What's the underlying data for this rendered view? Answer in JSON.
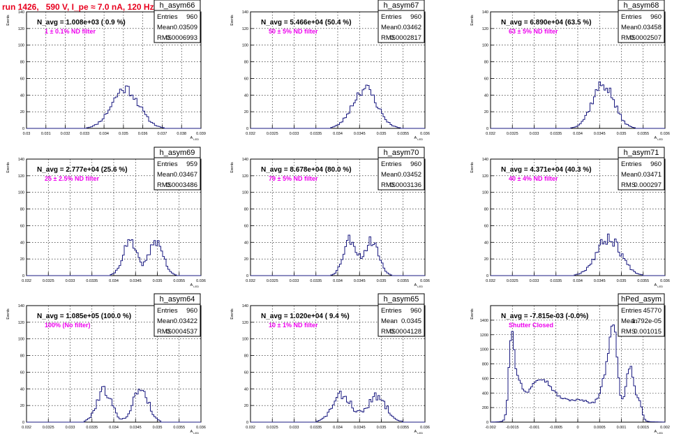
{
  "run_title": "run 1426,   590 V, I_pe ≈ 7.0 nA, 120 Hz",
  "chart_data": [
    {
      "type": "histogram",
      "name": "h_asym66",
      "navg": "N_avg = 1.008e+03 ( 0.9 %)",
      "filter": "1 ± 0.1% ND filter",
      "stats": {
        "entries": "960",
        "mean": "0.03509",
        "rms": "0.0006993"
      },
      "xlim": [
        0.03,
        0.039
      ],
      "ylim": [
        0,
        140
      ],
      "yticks": [
        0,
        20,
        40,
        60,
        80,
        100,
        120,
        140
      ],
      "xticks": [
        0.03,
        0.031,
        0.032,
        0.033,
        0.034,
        0.035,
        0.036,
        0.037,
        0.038,
        0.039
      ],
      "xtick_labels": [
        "0.03",
        "0.031",
        "0.032",
        "0.033",
        "0.034",
        "0.035",
        "0.036",
        "0.037",
        "0.038",
        "0.039"
      ],
      "xlabel": "A_LED",
      "ylabel": "Events",
      "bin": 0.0001,
      "peaks": [
        {
          "c": 0.0351,
          "s": 0.0007,
          "a": 48
        }
      ],
      "noise": 0.14,
      "seed": 11
    },
    {
      "type": "histogram",
      "name": "h_asym67",
      "navg": "N_avg = 5.466e+04 (50.4 %)",
      "filter": "50 ± 5% ND filter",
      "stats": {
        "entries": "960",
        "mean": "0.03462",
        "rms": "0.0002817"
      },
      "xlim": [
        0.032,
        0.036
      ],
      "ylim": [
        0,
        140
      ],
      "yticks": [
        0,
        20,
        40,
        60,
        80,
        100,
        120,
        140
      ],
      "xticks": [
        0.032,
        0.0325,
        0.033,
        0.0335,
        0.034,
        0.0345,
        0.035,
        0.0355,
        0.036
      ],
      "xtick_labels": [
        "0.032",
        "0.0325",
        "0.033",
        "0.0335",
        "0.034",
        "0.0345",
        "0.035",
        "0.0355",
        "0.036"
      ],
      "xlabel": "A_LED",
      "ylabel": "Events",
      "bin": 4e-05,
      "peaks": [
        {
          "c": 0.03462,
          "s": 0.00028,
          "a": 48
        }
      ],
      "noise": 0.15,
      "seed": 23
    },
    {
      "type": "histogram",
      "name": "h_asym68",
      "navg": "N_avg = 6.890e+04 (63.5 %)",
      "filter": "63 ± 5% ND filter",
      "stats": {
        "entries": "960",
        "mean": "0.03458",
        "rms": "0.0002507"
      },
      "xlim": [
        0.032,
        0.036
      ],
      "ylim": [
        0,
        140
      ],
      "yticks": [
        0,
        20,
        40,
        60,
        80,
        100,
        120,
        140
      ],
      "xticks": [
        0.032,
        0.0325,
        0.033,
        0.0335,
        0.034,
        0.0345,
        0.035,
        0.0355,
        0.036
      ],
      "xtick_labels": [
        "0.032",
        "0.0325",
        "0.033",
        "0.0335",
        "0.034",
        "0.0345",
        "0.035",
        "0.0355",
        "0.036"
      ],
      "xlabel": "A_LED",
      "ylabel": "Events",
      "bin": 4e-05,
      "peaks": [
        {
          "c": 0.03458,
          "s": 0.00025,
          "a": 53
        }
      ],
      "noise": 0.15,
      "seed": 37
    },
    {
      "type": "histogram",
      "name": "h_asym69",
      "navg": "N_avg = 2.777e+04 (25.6 %)",
      "filter": "25 ± 2.5% ND filter",
      "stats": {
        "entries": "959",
        "mean": "0.03467",
        "rms": "0.0003486"
      },
      "xlim": [
        0.032,
        0.036
      ],
      "ylim": [
        0,
        140
      ],
      "yticks": [
        0,
        20,
        40,
        60,
        80,
        100,
        120,
        140
      ],
      "xticks": [
        0.032,
        0.0325,
        0.033,
        0.0335,
        0.034,
        0.0345,
        0.035,
        0.0355,
        0.036
      ],
      "xtick_labels": [
        "0.032",
        "0.0325",
        "0.033",
        "0.0335",
        "0.034",
        "0.0345",
        "0.035",
        "0.0355",
        "0.036"
      ],
      "xlabel": "A_LED",
      "ylabel": "Events",
      "bin": 4e-05,
      "peaks": [
        {
          "c": 0.03437,
          "s": 0.00016,
          "a": 40
        },
        {
          "c": 0.03497,
          "s": 0.00016,
          "a": 42
        }
      ],
      "noise": 0.16,
      "seed": 41
    },
    {
      "type": "histogram",
      "name": "h_asym70",
      "navg": "N_avg = 8.678e+04 (80.0 %)",
      "filter": "79 ± 5% ND filter",
      "stats": {
        "entries": "960",
        "mean": "0.03452",
        "rms": "0.0003136"
      },
      "xlim": [
        0.032,
        0.036
      ],
      "ylim": [
        0,
        140
      ],
      "yticks": [
        0,
        20,
        40,
        60,
        80,
        100,
        120,
        140
      ],
      "xticks": [
        0.032,
        0.0325,
        0.033,
        0.0335,
        0.034,
        0.0345,
        0.035,
        0.0355,
        0.036
      ],
      "xtick_labels": [
        "0.032",
        "0.0325",
        "0.033",
        "0.0335",
        "0.034",
        "0.0345",
        "0.035",
        "0.0355",
        "0.036"
      ],
      "xlabel": "A_LED",
      "ylabel": "Events",
      "bin": 4e-05,
      "peaks": [
        {
          "c": 0.03428,
          "s": 0.00015,
          "a": 44
        },
        {
          "c": 0.03478,
          "s": 0.00016,
          "a": 42
        }
      ],
      "noise": 0.16,
      "seed": 53
    },
    {
      "type": "histogram",
      "name": "h_asym71",
      "navg": "N_avg = 4.371e+04 (40.3 %)",
      "filter": "40 ± 4% ND filter",
      "stats": {
        "entries": "960",
        "mean": "0.03471",
        "rms": "0.000297"
      },
      "xlim": [
        0.032,
        0.036
      ],
      "ylim": [
        0,
        140
      ],
      "yticks": [
        0,
        20,
        40,
        60,
        80,
        100,
        120,
        140
      ],
      "xticks": [
        0.032,
        0.0325,
        0.033,
        0.0335,
        0.034,
        0.0345,
        0.035,
        0.0355,
        0.036
      ],
      "xtick_labels": [
        "0.032",
        "0.0325",
        "0.033",
        "0.0335",
        "0.034",
        "0.0345",
        "0.035",
        "0.0355",
        "0.036"
      ],
      "xlabel": "A_LED",
      "ylabel": "Events",
      "bin": 4e-05,
      "peaks": [
        {
          "c": 0.03471,
          "s": 0.00028,
          "a": 45
        }
      ],
      "noise": 0.17,
      "seed": 67
    },
    {
      "type": "histogram",
      "name": "h_asym64",
      "navg": "N_avg = 1.085e+05 (100.0 %)",
      "filter": "100% (No filter)",
      "stats": {
        "entries": "960",
        "mean": "0.03422",
        "rms": "0.0004537"
      },
      "xlim": [
        0.032,
        0.036
      ],
      "ylim": [
        0,
        140
      ],
      "yticks": [
        0,
        20,
        40,
        60,
        80,
        100,
        120,
        140
      ],
      "xticks": [
        0.032,
        0.0325,
        0.033,
        0.0335,
        0.034,
        0.0345,
        0.035,
        0.0355,
        0.036
      ],
      "xtick_labels": [
        "0.032",
        "0.0325",
        "0.033",
        "0.0335",
        "0.034",
        "0.0345",
        "0.035",
        "0.0355",
        "0.036"
      ],
      "xlabel": "A_LED",
      "ylabel": "Events",
      "bin": 4e-05,
      "peaks": [
        {
          "c": 0.03378,
          "s": 0.00017,
          "a": 39
        },
        {
          "c": 0.03462,
          "s": 0.00017,
          "a": 41
        }
      ],
      "noise": 0.18,
      "seed": 79
    },
    {
      "type": "histogram",
      "name": "h_asym65",
      "navg": "N_avg = 1.020e+04 ( 9.4 %)",
      "filter": "10 ± 1% ND filter",
      "stats": {
        "entries": "960",
        "mean": "0.0345",
        "rms": "0.0004128"
      },
      "xlim": [
        0.032,
        0.036
      ],
      "ylim": [
        0,
        140
      ],
      "yticks": [
        0,
        20,
        40,
        60,
        80,
        100,
        120,
        140
      ],
      "xticks": [
        0.032,
        0.0325,
        0.033,
        0.0335,
        0.034,
        0.0345,
        0.035,
        0.0355,
        0.036
      ],
      "xtick_labels": [
        "0.032",
        "0.0325",
        "0.033",
        "0.0335",
        "0.034",
        "0.0345",
        "0.035",
        "0.0355",
        "0.036"
      ],
      "xlabel": "A_LED",
      "ylabel": "Events",
      "bin": 4e-05,
      "peaks": [
        {
          "c": 0.0341,
          "s": 0.00022,
          "a": 32
        },
        {
          "c": 0.0349,
          "s": 0.00022,
          "a": 30
        }
      ],
      "noise": 0.2,
      "seed": 83
    },
    {
      "type": "histogram",
      "name": "hPed_asym",
      "navg": "N_avg = -7.815e-03 (-0.0%)",
      "filter": "Shutter Closed",
      "stats": {
        "entries": "45770",
        "mean": "1.792e-05",
        "rms": "0.001015"
      },
      "xlim": [
        -0.002,
        0.002
      ],
      "ylim": [
        0,
        1600
      ],
      "yticks": [
        0,
        200,
        400,
        600,
        800,
        1000,
        1200,
        1400
      ],
      "xticks": [
        -0.002,
        -0.0015,
        -0.001,
        -0.0005,
        0,
        0.0005,
        0.001,
        0.0015,
        0.002
      ],
      "xtick_labels": [
        "-0.002",
        "-0.0015",
        "-0.001",
        "-0.0005",
        "0",
        "0.0005",
        "0.001",
        "0.0015",
        "0.002"
      ],
      "xlabel": "A_LED",
      "ylabel": "Events",
      "bin": 4e-05,
      "peaks": [
        {
          "c": -0.00152,
          "s": 6e-05,
          "a": 1050
        },
        {
          "c": -0.00138,
          "s": 0.0001,
          "a": 420
        },
        {
          "c": -0.0009,
          "s": 0.00028,
          "a": 510
        },
        {
          "c": 0.0,
          "s": 0.0006,
          "a": 300
        },
        {
          "c": 0.00082,
          "s": 9e-05,
          "a": 1100
        },
        {
          "c": 0.00065,
          "s": 0.00012,
          "a": 420
        },
        {
          "c": 0.0012,
          "s": 0.0001,
          "a": 720
        },
        {
          "c": 0.00142,
          "s": 6e-05,
          "a": 200
        }
      ],
      "noise": 0.05,
      "seed": 97
    }
  ]
}
